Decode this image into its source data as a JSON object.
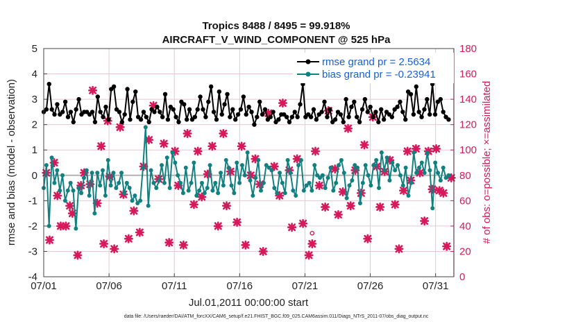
{
  "chart_data": {
    "type": "line",
    "title": "Tropics 8488 / 8495 = 99.918%",
    "subtitle": "AIRCRAFT_V_WIND_COMPONENT @ 525 hPa",
    "xlabel": "Jul.01,2011 00:00:00 start",
    "ylabel": "rmse and bias (model - observation)",
    "y2label": "# of obs: o=possible; ×=assimilated",
    "footnote": "data file: /Users/raeder/DAI/ATM_forcXX/CAM6_setup/f.e21.FHIST_BGC.f09_025.CAM6assim.011/Diags_NTrS_2011-07/obs_diag_output.nc",
    "xlim": [
      0,
      31.4
    ],
    "ylim": [
      -4,
      5
    ],
    "y2lim": [
      0,
      180
    ],
    "x_ticks": [
      {
        "x": 0,
        "label": "07/01"
      },
      {
        "x": 5,
        "label": "07/06"
      },
      {
        "x": 10,
        "label": "07/11"
      },
      {
        "x": 15,
        "label": "07/16"
      },
      {
        "x": 20,
        "label": "07/21"
      },
      {
        "x": 25,
        "label": "07/26"
      },
      {
        "x": 30,
        "label": "07/31"
      }
    ],
    "y_ticks": [
      "5",
      "4",
      "3",
      "2",
      "1",
      "0",
      "-1",
      "-2",
      "-3",
      "-4"
    ],
    "y2_ticks": [
      "180",
      "160",
      "140",
      "120",
      "100",
      "80",
      "60",
      "40",
      "20",
      "0"
    ],
    "grid": true,
    "zero_line": true,
    "legend_position": "top-right",
    "series": [
      {
        "name": "rmse grand pr = 2.5634",
        "color": "#000000",
        "marker": "star",
        "values": [
          2.5,
          2.6,
          3.6,
          2.6,
          2.4,
          2.8,
          2.4,
          2.5,
          2.9,
          2.3,
          2.5,
          2.1,
          2.6,
          3.0,
          2.4,
          2.5,
          2.5,
          2.4,
          2.5,
          2.1,
          3.1,
          2.5,
          2.3,
          2.7,
          2.2,
          3.4,
          3.5,
          2.6,
          2.5,
          2.1,
          2.4,
          3.4,
          2.2,
          2.9,
          3.3,
          2.3,
          2.2,
          2.5,
          2.3,
          2.1,
          2.6,
          2.5,
          2.7,
          2.5,
          2.3,
          3.2,
          2.2,
          2.7,
          2.6,
          2.3,
          2.1,
          2.9,
          2.8,
          2.2,
          2.6,
          2.2,
          2.3,
          2.6,
          3.1,
          2.6,
          2.3,
          2.9,
          3.5,
          2.5,
          2.2,
          3.3,
          2.4,
          2.8,
          3.2,
          2.3,
          2.6,
          2.2,
          2.4,
          2.6,
          3.1,
          2.4,
          2.7,
          2.5,
          2.0,
          2.3,
          2.9,
          2.4,
          2.6,
          2.2,
          2.3,
          2.5,
          2.1,
          2.2,
          2.4,
          2.4,
          2.3,
          2.1,
          2.3,
          2.5,
          2.3,
          2.8,
          3.6,
          2.3,
          2.4,
          2.3,
          2.6,
          2.2,
          2.4,
          2.5,
          2.9,
          2.3,
          2.6,
          2.1,
          2.2,
          2.5,
          2.4,
          2.1,
          3.0,
          2.3,
          2.7,
          2.9,
          2.3,
          2.1,
          2.6,
          3.0,
          2.5,
          2.7,
          2.3,
          2.5,
          2.1,
          2.6,
          2.2,
          2.5,
          2.4,
          2.3,
          2.6,
          2.7,
          2.9,
          2.5,
          2.2,
          3.3,
          3.2,
          2.4,
          3.5,
          2.5,
          2.3,
          2.6,
          3.0,
          2.4,
          3.6,
          2.4,
          2.9,
          3.0,
          2.5,
          2.3,
          2.2
        ]
      },
      {
        "name": "bias grand pr = -0.23941",
        "color": "#118080",
        "marker": "circle",
        "values": [
          -0.5,
          0.4,
          -2.0,
          0.7,
          -0.3,
          0.2,
          -0.6,
          0.0,
          -1.0,
          -0.6,
          -0.3,
          -0.6,
          -2.1,
          -0.5,
          -0.7,
          -0.1,
          0.2,
          -0.8,
          0.1,
          -1.5,
          0.1,
          -0.4,
          0.2,
          -0.8,
          0.6,
          -0.4,
          0.1,
          -0.5,
          -0.3,
          0.1,
          -0.7,
          -0.3,
          -0.5,
          -1.0,
          -0.8,
          -1.1,
          -1.0,
          0.3,
          1.9,
          -1.2,
          0.2,
          -0.3,
          -0.5,
          -0.2,
          0.4,
          -0.3,
          0.7,
          -0.5,
          0.9,
          0.5,
          0.0,
          -0.3,
          -0.7,
          0.3,
          -0.6,
          -0.3,
          0.5,
          -0.8,
          -0.6,
          -0.3,
          -0.7,
          -0.5,
          0.4,
          -0.6,
          -0.3,
          -0.7,
          0.1,
          -0.4,
          0.6,
          0.3,
          -0.4,
          -0.7,
          0.5,
          -0.3,
          0.4,
          0.0,
          0.9,
          -0.2,
          -0.8,
          -0.1,
          0.6,
          -0.6,
          -0.3,
          0.4,
          0.3,
          0.2,
          -0.5,
          -0.7,
          0.1,
          -0.3,
          -0.7,
          0.6,
          0.1,
          -0.6,
          -0.8,
          0.4,
          0.6,
          -0.6,
          -0.4,
          -0.3,
          -0.6,
          0.4,
          0.0,
          -0.1,
          0.0,
          -0.5,
          -0.1,
          0.3,
          -0.6,
          -0.3,
          0.4,
          0.6,
          0.1,
          -0.9,
          -0.4,
          -0.2,
          0.4,
          0.3,
          -1.1,
          -0.3,
          0.4,
          0.0,
          -0.4,
          0.4,
          0.6,
          -0.5,
          0.9,
          0.2,
          0.7,
          -0.2,
          0.5,
          0.2,
          0.4,
          0.0,
          -0.4,
          0.3,
          -0.8,
          -0.3,
          0.9,
          0.1,
          0.3,
          0.5,
          0.1,
          0.9,
          0.2,
          -1.3,
          0.5,
          0.1,
          -0.2,
          0.3,
          -0.1,
          0.0
        ]
      }
    ],
    "obs_possible": [
      {
        "x": 20.55,
        "y": 30
      }
    ],
    "obs_assimilated": [
      {
        "x": 0.2,
        "y": 82
      },
      {
        "x": 0.45,
        "y": 29
      },
      {
        "x": 0.8,
        "y": 90
      },
      {
        "x": 1.05,
        "y": 64
      },
      {
        "x": 1.3,
        "y": 40
      },
      {
        "x": 1.7,
        "y": 40
      },
      {
        "x": 2.0,
        "y": 56
      },
      {
        "x": 2.2,
        "y": 50
      },
      {
        "x": 2.6,
        "y": 17
      },
      {
        "x": 2.85,
        "y": 72
      },
      {
        "x": 3.1,
        "y": 82
      },
      {
        "x": 3.55,
        "y": 73
      },
      {
        "x": 3.75,
        "y": 147
      },
      {
        "x": 4.1,
        "y": 58
      },
      {
        "x": 4.4,
        "y": 103
      },
      {
        "x": 4.6,
        "y": 26
      },
      {
        "x": 4.9,
        "y": 123
      },
      {
        "x": 5.05,
        "y": 79
      },
      {
        "x": 5.4,
        "y": 22
      },
      {
        "x": 5.85,
        "y": 118
      },
      {
        "x": 6.1,
        "y": 65
      },
      {
        "x": 6.5,
        "y": 30
      },
      {
        "x": 6.9,
        "y": 52
      },
      {
        "x": 7.35,
        "y": 35
      },
      {
        "x": 7.65,
        "y": 87
      },
      {
        "x": 8.05,
        "y": 108
      },
      {
        "x": 8.4,
        "y": 135
      },
      {
        "x": 8.8,
        "y": 77
      },
      {
        "x": 9.2,
        "y": 105
      },
      {
        "x": 9.6,
        "y": 27
      },
      {
        "x": 10.05,
        "y": 99
      },
      {
        "x": 10.3,
        "y": 72
      },
      {
        "x": 10.7,
        "y": 25
      },
      {
        "x": 11.0,
        "y": 113
      },
      {
        "x": 11.5,
        "y": 57
      },
      {
        "x": 11.8,
        "y": 99
      },
      {
        "x": 12.1,
        "y": 63
      },
      {
        "x": 12.55,
        "y": 81
      },
      {
        "x": 12.9,
        "y": 103
      },
      {
        "x": 13.35,
        "y": 40
      },
      {
        "x": 13.75,
        "y": 113
      },
      {
        "x": 14.0,
        "y": 56
      },
      {
        "x": 14.3,
        "y": 83
      },
      {
        "x": 14.8,
        "y": 43
      },
      {
        "x": 15.15,
        "y": 103
      },
      {
        "x": 15.45,
        "y": 25
      },
      {
        "x": 15.85,
        "y": 80
      },
      {
        "x": 16.2,
        "y": 93
      },
      {
        "x": 16.55,
        "y": 73
      },
      {
        "x": 16.8,
        "y": 20
      },
      {
        "x": 17.2,
        "y": 129
      },
      {
        "x": 17.65,
        "y": 87
      },
      {
        "x": 18.05,
        "y": 64
      },
      {
        "x": 18.3,
        "y": 137
      },
      {
        "x": 18.8,
        "y": 84
      },
      {
        "x": 19.0,
        "y": 39
      },
      {
        "x": 19.4,
        "y": 93
      },
      {
        "x": 19.85,
        "y": 42
      },
      {
        "x": 20.3,
        "y": 17
      },
      {
        "x": 20.55,
        "y": 26
      },
      {
        "x": 20.8,
        "y": 99
      },
      {
        "x": 21.1,
        "y": 72
      },
      {
        "x": 21.55,
        "y": 55
      },
      {
        "x": 21.8,
        "y": 131
      },
      {
        "x": 22.3,
        "y": 85
      },
      {
        "x": 22.55,
        "y": 49
      },
      {
        "x": 22.9,
        "y": 67
      },
      {
        "x": 23.3,
        "y": 117
      },
      {
        "x": 23.5,
        "y": 56
      },
      {
        "x": 23.85,
        "y": 84
      },
      {
        "x": 24.3,
        "y": 66
      },
      {
        "x": 24.55,
        "y": 104
      },
      {
        "x": 24.8,
        "y": 30
      },
      {
        "x": 25.2,
        "y": 126
      },
      {
        "x": 25.5,
        "y": 87
      },
      {
        "x": 25.75,
        "y": 55
      },
      {
        "x": 26.1,
        "y": 83
      },
      {
        "x": 26.5,
        "y": 92
      },
      {
        "x": 26.9,
        "y": 57
      },
      {
        "x": 27.2,
        "y": 22
      },
      {
        "x": 27.55,
        "y": 68
      },
      {
        "x": 27.85,
        "y": 99
      },
      {
        "x": 28.1,
        "y": 76
      },
      {
        "x": 28.5,
        "y": 101
      },
      {
        "x": 28.8,
        "y": 82
      },
      {
        "x": 29.15,
        "y": 44
      },
      {
        "x": 29.45,
        "y": 99
      },
      {
        "x": 29.75,
        "y": 69
      },
      {
        "x": 30.05,
        "y": 101
      },
      {
        "x": 30.3,
        "y": 68
      },
      {
        "x": 30.6,
        "y": 66
      },
      {
        "x": 30.85,
        "y": 24
      },
      {
        "x": 31.2,
        "y": 78
      }
    ]
  }
}
